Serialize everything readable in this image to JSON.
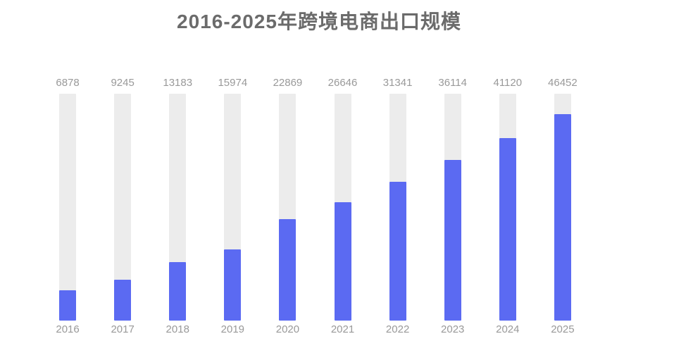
{
  "title": "2016-2025年跨境电商出口规模",
  "chart_data": {
    "type": "bar",
    "title": "2016-2025年跨境电商出口规模",
    "categories": [
      "2016",
      "2017",
      "2018",
      "2019",
      "2020",
      "2021",
      "2022",
      "2023",
      "2024",
      "2025"
    ],
    "values": [
      6878,
      9245,
      13183,
      15974,
      22869,
      26646,
      31341,
      36114,
      41120,
      46452
    ],
    "xlabel": "",
    "ylabel": "",
    "ylim": [
      0,
      51100
    ],
    "grid": false,
    "legend": "none",
    "value_labels_shown": true,
    "bar_color": "#5b6af2",
    "track_color": "#ececec",
    "label_color": "#999999",
    "title_color": "#6b6b6b",
    "background_color": "#ffffff"
  }
}
